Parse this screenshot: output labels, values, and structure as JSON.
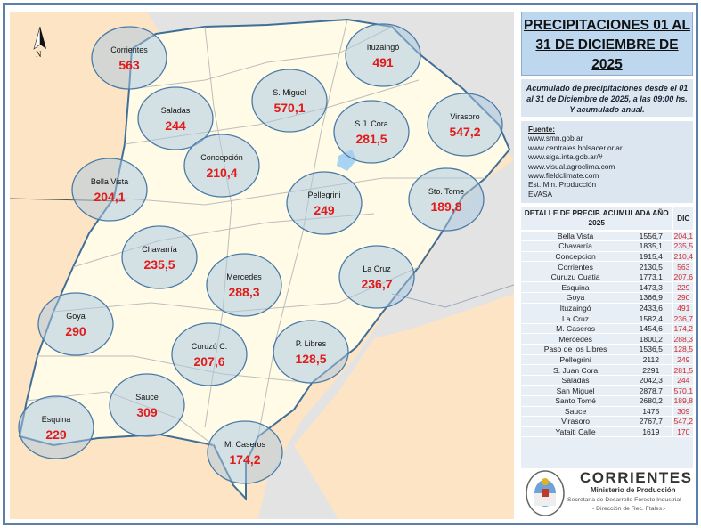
{
  "title": "PRECIPITACIONES 01 AL 31 DE DICIEMBRE DE 2025",
  "subtitle": "Acumulado de precipitaciones desde el 01 al 31 de Diciembre de 2025, a las 09:00 hs. Y acumulado anual.",
  "sources": {
    "heading": "Fuente:",
    "items": [
      "www.smn.gob.ar",
      "www.centrales.bolsacer.or.ar",
      "www.siga.inta.gob.ar/#",
      "www.visual.agroclima.com",
      "www.fieldclimate.com",
      "Est. Min. Producción",
      "EVASA"
    ]
  },
  "compass": "N",
  "colors": {
    "province": "#fffbe6",
    "neighbors": "#fce4c4",
    "foreign": "#e3e3e3",
    "river": "#4a85b8",
    "bubble": "#b9d3e6",
    "value": "#e01b1b"
  },
  "stations": [
    {
      "name": "Corrientes",
      "value": "563"
    },
    {
      "name": "Ituzaingó",
      "value": "491"
    },
    {
      "name": "Saladas",
      "value": "244"
    },
    {
      "name": "S. Miguel",
      "value": "570,1"
    },
    {
      "name": "S.J. Cora",
      "value": "281,5"
    },
    {
      "name": "Virasoro",
      "value": "547,2"
    },
    {
      "name": "Bella Vista",
      "value": "204,1"
    },
    {
      "name": "Concepción",
      "value": "210,4"
    },
    {
      "name": "Pellegrini",
      "value": "249"
    },
    {
      "name": "Sto. Tome",
      "value": "189,8"
    },
    {
      "name": "Chavarría",
      "value": "235,5"
    },
    {
      "name": "Mercedes",
      "value": "288,3"
    },
    {
      "name": "La Cruz",
      "value": "236,7"
    },
    {
      "name": "Goya",
      "value": "290"
    },
    {
      "name": "Curuzú C.",
      "value": "207,6"
    },
    {
      "name": "P. Libres",
      "value": "128,5"
    },
    {
      "name": "Sauce",
      "value": "309"
    },
    {
      "name": "Esquina",
      "value": "229"
    },
    {
      "name": "M. Caseros",
      "value": "174,2"
    }
  ],
  "table": {
    "header": "DETALLE DE PRECIP. ACUMULADA AÑO 2025",
    "header_dic": "DIC",
    "rows": [
      [
        "Bella Vista",
        "1556,7",
        "204,1"
      ],
      [
        "Chavarría",
        "1835,1",
        "235,5"
      ],
      [
        "Concepcion",
        "1915,4",
        "210,4"
      ],
      [
        "Corrientes",
        "2130,5",
        "563"
      ],
      [
        "Curuzu Cuatia",
        "1773,1",
        "207,6"
      ],
      [
        "Esquina",
        "1473,3",
        "229"
      ],
      [
        "Goya",
        "1366,9",
        "290"
      ],
      [
        "Ituzaingó",
        "2433,6",
        "491"
      ],
      [
        "La Cruz",
        "1582,4",
        "236,7"
      ],
      [
        "M. Caseros",
        "1454,6",
        "174,2"
      ],
      [
        "Mercedes",
        "1800,2",
        "288,3"
      ],
      [
        "Paso de los Libres",
        "1536,5",
        "128,5"
      ],
      [
        "Pellegrini",
        "2112",
        "249"
      ],
      [
        "S. Juan Cora",
        "2291",
        "281,5"
      ],
      [
        "Saladas",
        "2042,3",
        "244"
      ],
      [
        "San Miguel",
        "2878,7",
        "570,1"
      ],
      [
        "Santo Tomé",
        "2680,2",
        "189,8"
      ],
      [
        "Sauce",
        "1475",
        "309"
      ],
      [
        "Virasoro",
        "2767,7",
        "547,2"
      ],
      [
        "Yataiti Calle",
        "1619",
        "170"
      ]
    ]
  },
  "logo": {
    "name": "CORRIENTES",
    "ministry": "Ministerio de Producción",
    "secretariat": "Secretaria de Desarrollo Foresto Industrial",
    "direction": "- Dirección de Rec. Ftales.-",
    "seal_text": "GOBIERNO PROVINCIAL"
  }
}
